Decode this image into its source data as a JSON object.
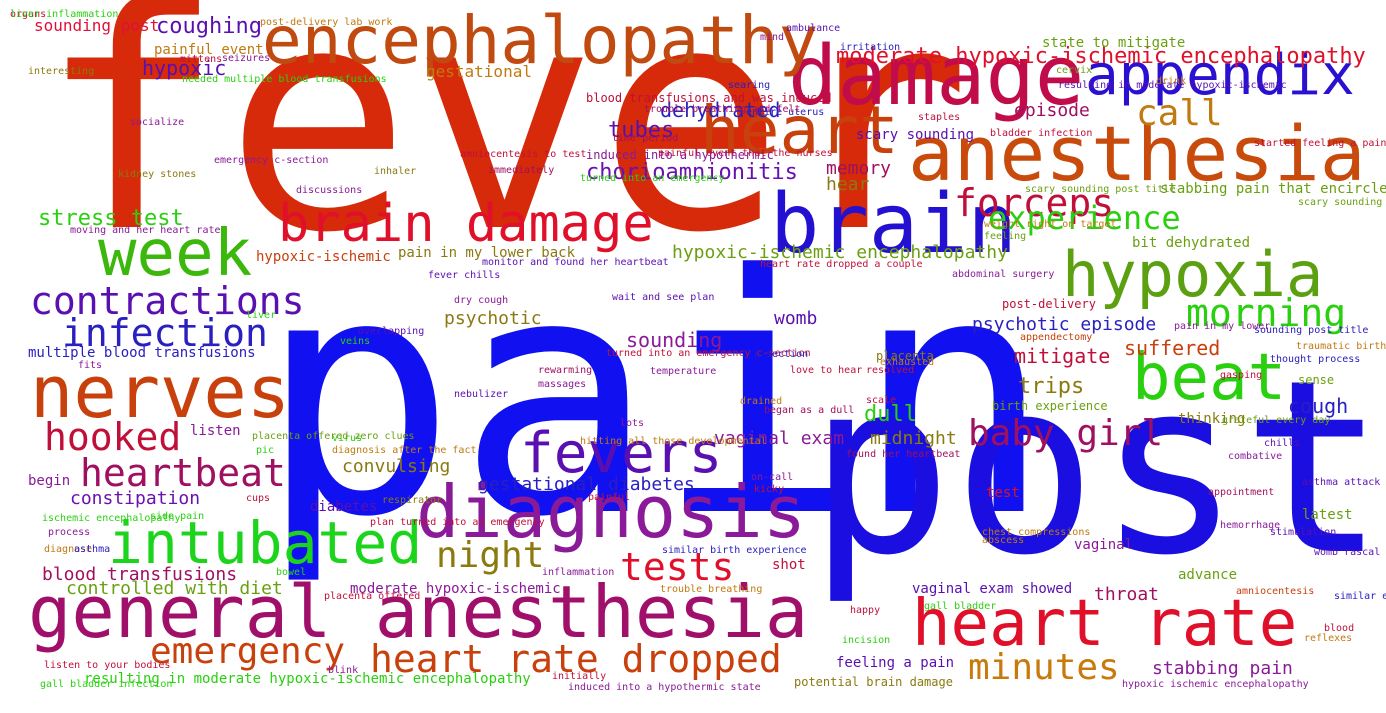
{
  "words": [
    {
      "text": "fever",
      "color": "#d62a0a"
    },
    {
      "text": "pain",
      "color": "#1010f0"
    },
    {
      "text": "post",
      "color": "#1a0ee0"
    },
    {
      "text": "damage",
      "color": "#c00c4a"
    },
    {
      "text": "brain",
      "color": "#2410d0"
    },
    {
      "text": "anesthesia",
      "color": "#c84b0c"
    },
    {
      "text": "encephalopathy",
      "color": "#c04a10"
    },
    {
      "text": "heart",
      "color": "#c8400c"
    },
    {
      "text": "appendix",
      "color": "#2a10d0"
    },
    {
      "text": "diagnosis",
      "color": "#8a1a98"
    },
    {
      "text": "general anesthesia",
      "color": "#a0106a"
    },
    {
      "text": "heart rate",
      "color": "#e0102a"
    },
    {
      "text": "hypoxia",
      "color": "#5aa010"
    },
    {
      "text": "nerves",
      "color": "#c8400c"
    },
    {
      "text": "intubated",
      "color": "#1cd41c"
    },
    {
      "text": "week",
      "color": "#3cb80c"
    },
    {
      "text": "beat",
      "color": "#2ad010"
    },
    {
      "text": "brain damage",
      "color": "#e0102a"
    },
    {
      "text": "fevers",
      "color": "#5a10b0"
    },
    {
      "text": "contractions",
      "color": "#5a10b0"
    },
    {
      "text": "infection",
      "color": "#2a20c0"
    },
    {
      "text": "heart rate dropped",
      "color": "#c8400c"
    },
    {
      "text": "heartbeat",
      "color": "#a01060"
    },
    {
      "text": "hooked",
      "color": "#c0103a"
    },
    {
      "text": "emergency",
      "color": "#c8400c"
    },
    {
      "text": "tests",
      "color": "#e0102a"
    },
    {
      "text": "night",
      "color": "#8a7a10"
    },
    {
      "text": "minutes",
      "color": "#c87a0c"
    },
    {
      "text": "baby girl",
      "color": "#a01060"
    },
    {
      "text": "morning",
      "color": "#2ad010"
    },
    {
      "text": "forceps",
      "color": "#c0103a"
    },
    {
      "text": "experience",
      "color": "#2ad010"
    },
    {
      "text": "call",
      "color": "#c07a10"
    },
    {
      "text": "moderate hypoxic-ischemic encephalopathy",
      "color": "#e0102a"
    },
    {
      "text": "coughing",
      "color": "#5a10b0"
    },
    {
      "text": "sounding post",
      "color": "#e0103a"
    },
    {
      "text": "hypoxic",
      "color": "#5a10b0"
    },
    {
      "text": "gestational",
      "color": "#c07a10"
    },
    {
      "text": "dehydrated",
      "color": "#2a20c0"
    },
    {
      "text": "tubes",
      "color": "#5a10b0"
    },
    {
      "text": "chorioamnionitis",
      "color": "#6a10b0"
    },
    {
      "text": "memory",
      "color": "#a01060"
    },
    {
      "text": "hear",
      "color": "#8a7a10"
    },
    {
      "text": "episode",
      "color": "#a01060"
    },
    {
      "text": "scary sounding",
      "color": "#5a10b0"
    },
    {
      "text": "stress test",
      "color": "#2ad010"
    },
    {
      "text": "hypoxic-ischemic encephalopathy",
      "color": "#6aa010"
    },
    {
      "text": "hypoxic-ischemic",
      "color": "#c8400c"
    },
    {
      "text": "pain in my lower back",
      "color": "#8a7a10"
    },
    {
      "text": "psychotic",
      "color": "#8a7a10"
    },
    {
      "text": "womb",
      "color": "#5a10b0"
    },
    {
      "text": "psychotic episode",
      "color": "#2a20c0"
    },
    {
      "text": "suffered",
      "color": "#c8400c"
    },
    {
      "text": "mitigate",
      "color": "#c0103a"
    },
    {
      "text": "multiple blood transfusions",
      "color": "#2a20c0"
    },
    {
      "text": "sounding",
      "color": "#8a1a98"
    },
    {
      "text": "dull",
      "color": "#2ad010"
    },
    {
      "text": "trips",
      "color": "#8a7a10"
    },
    {
      "text": "cough",
      "color": "#2a20c0"
    },
    {
      "text": "vaginal exam",
      "color": "#8a1a98"
    },
    {
      "text": "midnight",
      "color": "#8a7a10"
    },
    {
      "text": "listen",
      "color": "#8a1a98"
    },
    {
      "text": "convulsing",
      "color": "#8a7a10"
    },
    {
      "text": "gestational diabetes",
      "color": "#2a20c0"
    },
    {
      "text": "begin",
      "color": "#8a1a98"
    },
    {
      "text": "constipation",
      "color": "#6a10b0"
    },
    {
      "text": "diabetes",
      "color": "#5a10b0"
    },
    {
      "text": "blood transfusions",
      "color": "#a01060"
    },
    {
      "text": "controlled with diet",
      "color": "#6aa010"
    },
    {
      "text": "moderate hypoxic-ischemic",
      "color": "#8a1a98"
    },
    {
      "text": "vaginal exam showed",
      "color": "#5a10b0"
    },
    {
      "text": "throat",
      "color": "#a01060"
    },
    {
      "text": "advance",
      "color": "#6aa010"
    },
    {
      "text": "vaginal",
      "color": "#8a1a98"
    },
    {
      "text": "test",
      "color": "#e0102a"
    },
    {
      "text": "shot",
      "color": "#c0103a"
    },
    {
      "text": "feeling a pain",
      "color": "#5a10b0"
    },
    {
      "text": "stabbing pain",
      "color": "#8a1a98"
    },
    {
      "text": "resulting in moderate hypoxic-ischemic encephalopathy",
      "color": "#2ad010"
    },
    {
      "text": "potential brain damage",
      "color": "#8a7a10"
    },
    {
      "text": "placenta",
      "color": "#8a7a10"
    },
    {
      "text": "thinking",
      "color": "#8a7a10"
    },
    {
      "text": "sense",
      "color": "#6aa010"
    },
    {
      "text": "birth experience",
      "color": "#6aa010"
    },
    {
      "text": "post-delivery",
      "color": "#c0103a"
    },
    {
      "text": "bit dehydrated",
      "color": "#6aa010"
    },
    {
      "text": "stabbing pain that encircled",
      "color": "#6aa010"
    },
    {
      "text": "state to mitigate",
      "color": "#6aa010"
    },
    {
      "text": "latest",
      "color": "#6aa010"
    },
    {
      "text": "painful event",
      "color": "#c07a10"
    },
    {
      "text": "post-delivery lab work",
      "color": "#c07a10"
    },
    {
      "text": "blood transfusions and was induced",
      "color": "#c0103a"
    },
    {
      "text": "induced into a hypothermic",
      "color": "#8a1a98"
    },
    {
      "text": "mittens",
      "color": "#c0103a"
    },
    {
      "text": "seizures",
      "color": "#8a1a98"
    },
    {
      "text": "needed multiple blood transfusions",
      "color": "#2ad010"
    },
    {
      "text": "interesting",
      "color": "#8a7a10"
    },
    {
      "text": "socialize",
      "color": "#8a1a98"
    },
    {
      "text": "kidney stones",
      "color": "#8a7a10"
    },
    {
      "text": "emergency c-section",
      "color": "#8a1a98"
    },
    {
      "text": "discussions",
      "color": "#8a1a98"
    },
    {
      "text": "inhaler",
      "color": "#8a7a10"
    },
    {
      "text": "amniocentesis to test",
      "color": "#c0103a"
    },
    {
      "text": "immediately",
      "color": "#a01060"
    },
    {
      "text": "turned into an emergency",
      "color": "#2ad010"
    },
    {
      "text": "moving and her heart rate",
      "color": "#8a1a98"
    },
    {
      "text": "monitor and found her heartbeat",
      "color": "#5a10b0"
    },
    {
      "text": "heart rate dropped a couple",
      "color": "#c0103a"
    },
    {
      "text": "fever chills",
      "color": "#5a10b0"
    },
    {
      "text": "wait and see plan",
      "color": "#5a10b0"
    },
    {
      "text": "dry cough",
      "color": "#8a1a98"
    },
    {
      "text": "liver",
      "color": "#2ad010"
    },
    {
      "text": "overlapping",
      "color": "#5a10b0"
    },
    {
      "text": "veins",
      "color": "#2ad010"
    },
    {
      "text": "fits",
      "color": "#8a1a98"
    },
    {
      "text": "turned into an emergency c-section",
      "color": "#c0103a"
    },
    {
      "text": "rewarming",
      "color": "#a01060"
    },
    {
      "text": "massages",
      "color": "#8a1a98"
    },
    {
      "text": "temperature",
      "color": "#8a1a98"
    },
    {
      "text": "c-section",
      "color": "#2a20c0"
    },
    {
      "text": "love to hear",
      "color": "#c0103a"
    },
    {
      "text": "resolved",
      "color": "#c0103a"
    },
    {
      "text": "exhausted",
      "color": "#c07a10"
    },
    {
      "text": "nebulizer",
      "color": "#5a10b0"
    },
    {
      "text": "lots",
      "color": "#8a1a98"
    },
    {
      "text": "drained",
      "color": "#c07a10"
    },
    {
      "text": "began as a dull",
      "color": "#a01060"
    },
    {
      "text": "scale",
      "color": "#c0103a"
    },
    {
      "text": "virus",
      "color": "#2ad010"
    },
    {
      "text": "diagnosis after the fact",
      "color": "#c07a10"
    },
    {
      "text": "hitting all those developmental",
      "color": "#c07a10"
    },
    {
      "text": "found her heartbeat",
      "color": "#a01060"
    },
    {
      "text": "placenta offered zero clues",
      "color": "#6aa010"
    },
    {
      "text": "pic",
      "color": "#2ad010"
    },
    {
      "text": "on-call",
      "color": "#8a1a98"
    },
    {
      "text": "kicky",
      "color": "#c0103a"
    },
    {
      "text": "cups",
      "color": "#c0103a"
    },
    {
      "text": "respirator",
      "color": "#8a7a10"
    },
    {
      "text": "painful",
      "color": "#c0103a"
    },
    {
      "text": "ischemic encephalopathy",
      "color": "#2ad010"
    },
    {
      "text": "side pain",
      "color": "#2ad010"
    },
    {
      "text": "plan turned into an emergency",
      "color": "#c0103a"
    },
    {
      "text": "process",
      "color": "#8a1a98"
    },
    {
      "text": "diagnose",
      "color": "#c07a10"
    },
    {
      "text": "asthma",
      "color": "#2a20c0"
    },
    {
      "text": "bowel",
      "color": "#2ad010"
    },
    {
      "text": "similar birth experience",
      "color": "#2a20c0"
    },
    {
      "text": "inflammation",
      "color": "#8a1a98"
    },
    {
      "text": "trouble breathing",
      "color": "#c07a10"
    },
    {
      "text": "placenta offered",
      "color": "#c0103a"
    },
    {
      "text": "blink",
      "color": "#8a1a98"
    },
    {
      "text": "happy",
      "color": "#c0103a"
    },
    {
      "text": "incision",
      "color": "#2ad010"
    },
    {
      "text": "gall bladder",
      "color": "#2ad010"
    },
    {
      "text": "listen to your bodies",
      "color": "#c0103a"
    },
    {
      "text": "gall bladder infection",
      "color": "#2ad010"
    },
    {
      "text": "initially",
      "color": "#c0103a"
    },
    {
      "text": "induced into a hypothermic state",
      "color": "#8a1a98"
    },
    {
      "text": "hypoxic ischemic encephalopathy",
      "color": "#8a1a98"
    },
    {
      "text": "chest compressions",
      "color": "#c07a10"
    },
    {
      "text": "abscess",
      "color": "#c07a10"
    },
    {
      "text": "hemorrhage",
      "color": "#8a1a98"
    },
    {
      "text": "stimulation",
      "color": "#5a10b0"
    },
    {
      "text": "womb rascal",
      "color": "#5a10b0"
    },
    {
      "text": "amniocentesis",
      "color": "#c8400c"
    },
    {
      "text": "similar experience",
      "color": "#2a20c0"
    },
    {
      "text": "blood",
      "color": "#c0103a"
    },
    {
      "text": "reflexes",
      "color": "#c07a10"
    },
    {
      "text": "appointment",
      "color": "#a01060"
    },
    {
      "text": "asthma attack",
      "color": "#5a10b0"
    },
    {
      "text": "combative",
      "color": "#8a1a98"
    },
    {
      "text": "chills",
      "color": "#5a10b0"
    },
    {
      "text": "grateful every day",
      "color": "#6aa010"
    },
    {
      "text": "gasping",
      "color": "#c0103a"
    },
    {
      "text": "thought process",
      "color": "#2a20c0"
    },
    {
      "text": "traumatic birth",
      "color": "#c07a10"
    },
    {
      "text": "appendectomy",
      "color": "#c8400c"
    },
    {
      "text": "sounding post title",
      "color": "#2a20c0"
    },
    {
      "text": "pain in my lower",
      "color": "#8a1a98"
    },
    {
      "text": "abdominal surgery",
      "color": "#8a1a98"
    },
    {
      "text": "feeling",
      "color": "#6aa010"
    },
    {
      "text": "weight right on target",
      "color": "#c07a10"
    },
    {
      "text": "scary sounding post title",
      "color": "#6aa010"
    },
    {
      "text": "scary sounding post",
      "color": "#6aa010"
    },
    {
      "text": "started feeling a pain",
      "color": "#c0103a"
    },
    {
      "text": "bladder infection",
      "color": "#c0103a"
    },
    {
      "text": "staples",
      "color": "#c0103a"
    },
    {
      "text": "entire uterus",
      "color": "#2a20c0"
    },
    {
      "text": "trouble breathing and felt",
      "color": "#a01060"
    },
    {
      "text": "painful event that the nurses",
      "color": "#c0103a"
    },
    {
      "text": "time period",
      "color": "#a01060"
    },
    {
      "text": "searing",
      "color": "#2a20c0"
    },
    {
      "text": "mind",
      "color": "#8a1a98"
    },
    {
      "text": "ambulance",
      "color": "#5a10b0"
    },
    {
      "text": "irritation",
      "color": "#2a20c0"
    },
    {
      "text": "cervix",
      "color": "#6aa010"
    },
    {
      "text": "resulting in moderate hypoxic-ischemic",
      "color": "#5a10b0"
    },
    {
      "text": "drink",
      "color": "#c07a10"
    },
    {
      "text": "organs",
      "color": "#c0103a"
    },
    {
      "text": "liver inflammation",
      "color": "#2ad010"
    }
  ]
}
